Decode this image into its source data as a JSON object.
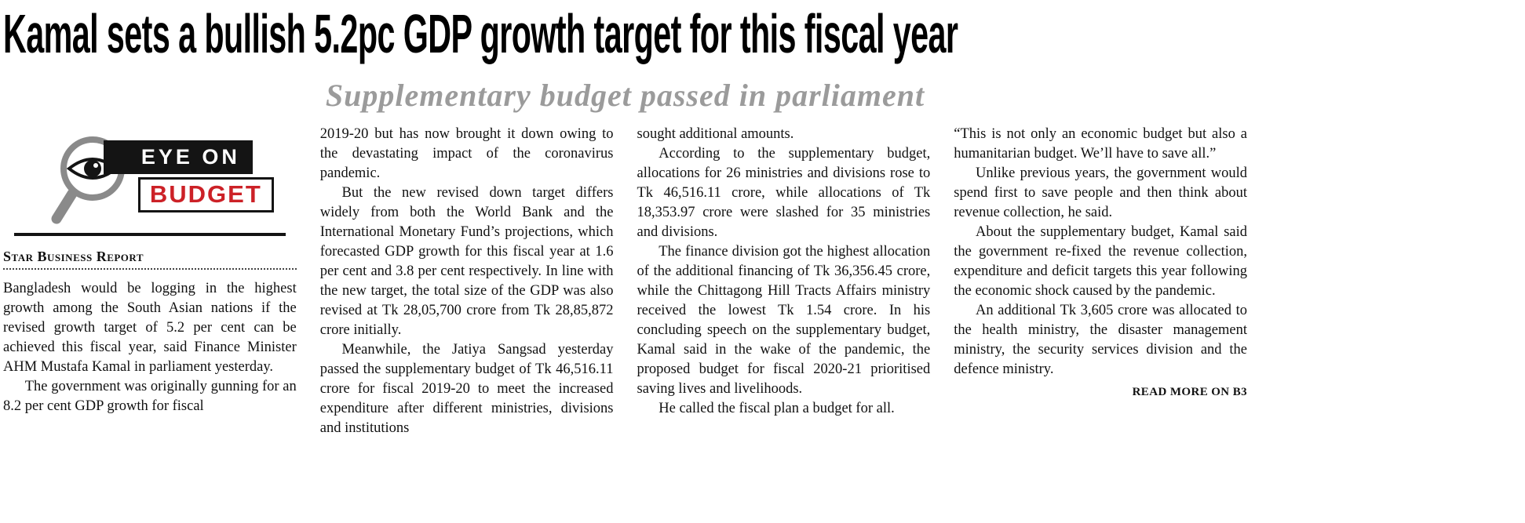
{
  "article": {
    "headline": "Kamal sets a bullish 5.2pc GDP growth target for this fiscal year",
    "subheadline": "Supplementary budget passed in parliament",
    "byline": "Star Business Report",
    "read_more": "READ MORE ON B3",
    "logo": {
      "line1": "EYE ON",
      "line2": "BUDGET",
      "accent_color": "#cc2127"
    },
    "columns": [
      {
        "paragraphs": [
          "Bangladesh would be logging in the highest growth among the South Asian nations if the revised growth target of 5.2 per cent can be achieved this fiscal year, said Finance Minister AHM Mustafa Kamal in parliament yesterday.",
          "The government was originally gunning for an 8.2 per cent GDP growth for fiscal"
        ]
      },
      {
        "paragraphs": [
          "2019-20 but has now brought it down owing to the devastating impact of the coronavirus pandemic.",
          "But the new revised down target differs widely from both the World Bank and the International Monetary Fund’s projections, which forecasted GDP growth for this fiscal year at 1.6 per cent and 3.8 per cent respectively. In line with the new target, the total size of the GDP was also revised at Tk 28,05,700 crore from Tk 28,85,872 crore initially.",
          "Meanwhile, the Jatiya Sangsad yesterday passed the supplementary budget of Tk 46,516.11 crore for fiscal 2019-20 to meet the increased expenditure after different ministries, divisions and institutions"
        ]
      },
      {
        "paragraphs": [
          "sought additional amounts.",
          "According to the supplementary budget, allocations for 26 ministries and divisions rose to Tk 46,516.11 crore, while allocations of Tk 18,353.97 crore were slashed for 35 ministries and divisions.",
          "The finance division got the highest allocation of the additional financing of Tk 36,356.45 crore, while the Chittagong Hill Tracts Affairs ministry received the lowest Tk 1.54 crore. In his concluding speech on the supplementary budget, Kamal said in the wake of the pandemic, the proposed budget for fiscal 2020-21 prioritised saving lives and livelihoods.",
          "He called the fiscal plan a budget for all."
        ]
      },
      {
        "paragraphs": [
          "“This is not only an economic budget but also a humanitarian budget. We’ll have to save all.”",
          "Unlike previous years, the government would spend first to save people and then think about revenue collection, he said.",
          "About the supplementary budget, Kamal said the government re-fixed the revenue collection, expenditure and deficit targets this year following the economic shock caused by the pandemic.",
          "An additional Tk 3,605 crore was allocated to the health ministry, the disaster management ministry, the security services division and the defence ministry."
        ]
      }
    ]
  }
}
